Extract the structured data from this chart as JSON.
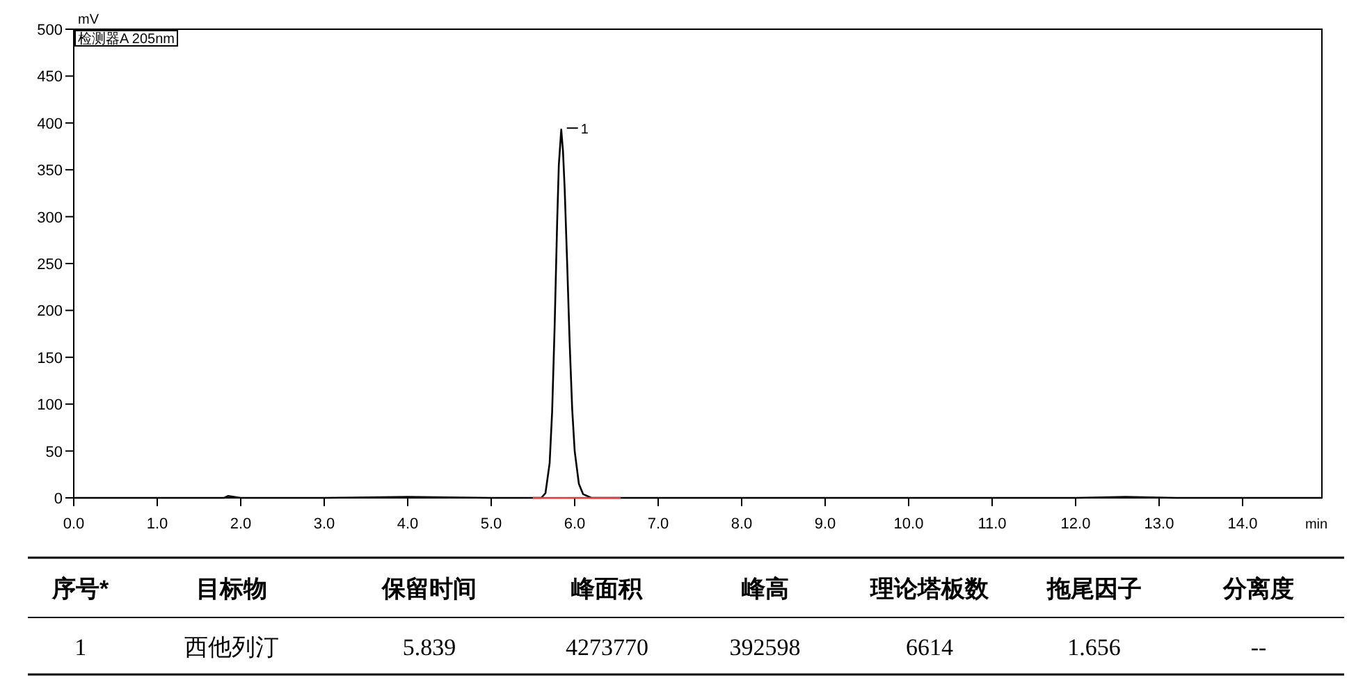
{
  "chart_data": {
    "type": "line",
    "xlabel": "min",
    "ylabel": "mV",
    "xlim": [
      0,
      14.95
    ],
    "ylim": [
      0,
      500
    ],
    "xticks": [
      {
        "value": 0,
        "label": "0.0"
      },
      {
        "value": 1,
        "label": "1.0"
      },
      {
        "value": 2,
        "label": "2.0"
      },
      {
        "value": 3,
        "label": "3.0"
      },
      {
        "value": 4,
        "label": "4.0"
      },
      {
        "value": 5,
        "label": "5.0"
      },
      {
        "value": 6,
        "label": "6.0"
      },
      {
        "value": 7,
        "label": "7.0"
      },
      {
        "value": 8,
        "label": "8.0"
      },
      {
        "value": 9,
        "label": "9.0"
      },
      {
        "value": 10,
        "label": "10.0"
      },
      {
        "value": 11,
        "label": "11.0"
      },
      {
        "value": 12,
        "label": "12.0"
      },
      {
        "value": 13,
        "label": "13.0"
      },
      {
        "value": 14,
        "label": "14.0"
      }
    ],
    "yticks": [
      0,
      50,
      100,
      150,
      200,
      250,
      300,
      350,
      400,
      450,
      500
    ],
    "grid": false,
    "series": [
      {
        "color": "#000000",
        "x": [
          0,
          1.0,
          1.8,
          1.85,
          2.0,
          2.5,
          3.0,
          4.0,
          5.0,
          5.5,
          5.6,
          5.65,
          5.7,
          5.73,
          5.76,
          5.79,
          5.81,
          5.839,
          5.86,
          5.88,
          5.91,
          5.94,
          5.97,
          6.0,
          6.05,
          6.1,
          6.2,
          6.5,
          7.0,
          9.0,
          12.0,
          12.6,
          13.2,
          14.95
        ],
        "values": [
          0,
          0,
          0,
          2,
          0,
          0,
          0,
          1,
          0,
          0,
          0,
          5,
          37,
          92,
          183,
          294,
          355,
          393,
          370,
          330,
          250,
          165,
          95,
          50,
          15,
          4,
          0,
          0,
          0,
          0,
          0,
          1,
          0,
          0
        ]
      },
      {
        "color": "#e53935",
        "x": [
          5.5,
          6.55
        ],
        "values": [
          0,
          0
        ]
      }
    ],
    "annotations": [
      {
        "text": "1",
        "x": 5.839,
        "y": 393
      },
      "检测器A 205nm",
      "序号*",
      "目标物",
      "保留时间",
      "峰面积",
      "峰高",
      "理论塔板数",
      "拖尾因子",
      "分离度",
      "1",
      "西他列汀",
      "5.839",
      "4273770",
      "392598",
      "6614",
      "1.656",
      "--"
    ]
  }
}
